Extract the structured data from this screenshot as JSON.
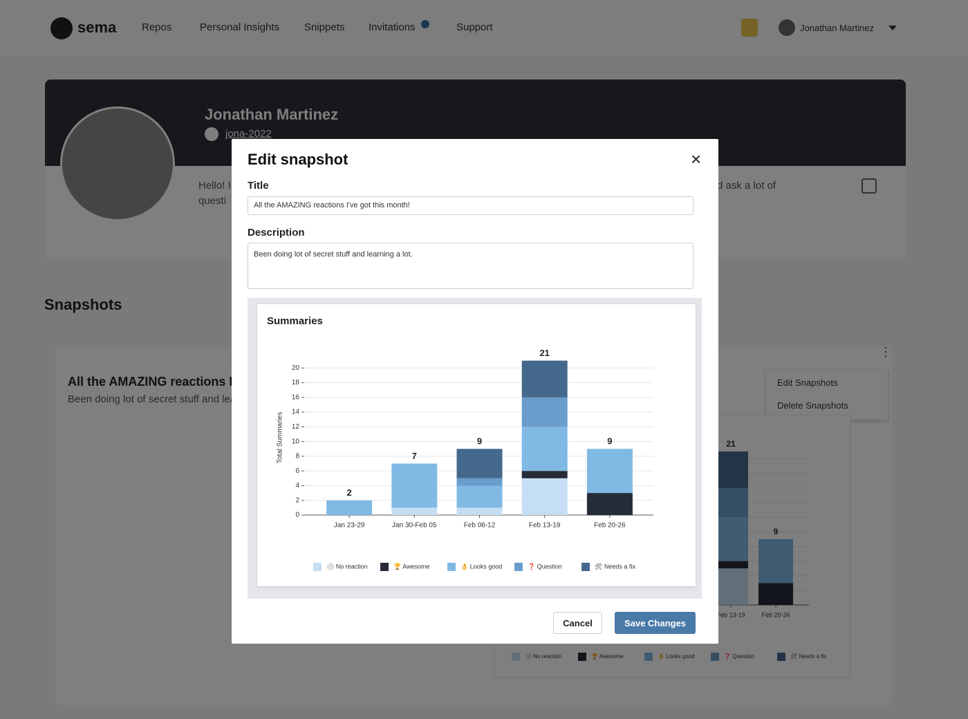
{
  "nav": {
    "logo": "sema",
    "items": [
      "Repos",
      "Personal Insights",
      "Snippets",
      "Invitations",
      "Support"
    ],
    "user": "Jonathan Martinez"
  },
  "profile": {
    "name": "Jonathan Martinez",
    "handle": "jona-2022",
    "bio_fragments": [
      "Hello! I",
      "questi",
      "d ask a lot of"
    ]
  },
  "snapshots": {
    "heading": "Snapshots",
    "card": {
      "title": "All the AMAZING reactions I've got this month!",
      "description": "Been doing lot of secret stuff and learning a lot."
    },
    "menu": [
      "Edit Snapshots",
      "Delete Snapshots"
    ]
  },
  "modal": {
    "title": "Edit snapshot",
    "title_label": "Title",
    "title_value": "All the AMAZING reactions I've got this month!",
    "description_label": "Description",
    "description_value": "Been doing lot of secret stuff and learning a lot.",
    "buttons": {
      "cancel": "Cancel",
      "save": "Save Changes"
    }
  },
  "chart_data": {
    "type": "bar",
    "stacked": true,
    "title": "Summaries",
    "y_label": "Total Summaries",
    "categories": [
      "Jan 23-29",
      "Jan 30-Feb 05",
      "Feb 06-12",
      "Feb 13-19",
      "Feb 20-26"
    ],
    "series": [
      {
        "name": "⚪ No reaction",
        "color": "#c5def3",
        "values": [
          0,
          1,
          1,
          5,
          0
        ]
      },
      {
        "name": "🏆 Awesome",
        "color": "#262b38",
        "values": [
          0,
          0,
          0,
          1,
          3
        ]
      },
      {
        "name": "👌 Looks good",
        "color": "#80b9e4",
        "values": [
          2,
          6,
          3,
          6,
          6
        ]
      },
      {
        "name": "❓ Question",
        "color": "#6a9dcb",
        "values": [
          0,
          0,
          1,
          4,
          0
        ]
      },
      {
        "name": "🛠 Needs a fix",
        "color": "#45698d",
        "values": [
          0,
          0,
          4,
          5,
          0
        ]
      }
    ],
    "totals": [
      2,
      7,
      9,
      21,
      9
    ],
    "ylim": [
      0,
      22
    ],
    "yticks": [
      0,
      2,
      4,
      6,
      8,
      10,
      12,
      14,
      16,
      18,
      20
    ],
    "grid": true,
    "legend": "bottom"
  }
}
